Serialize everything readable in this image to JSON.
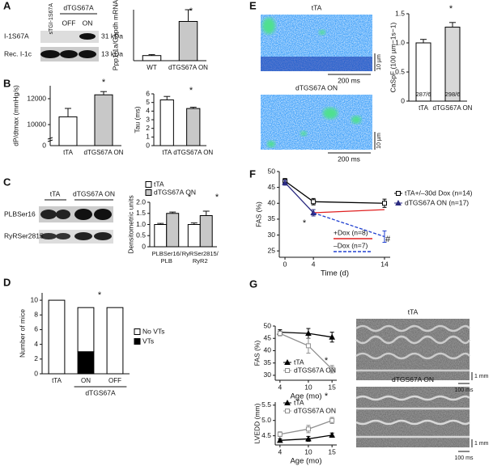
{
  "figure": {
    "panels": [
      "A",
      "B",
      "C",
      "D",
      "E",
      "F",
      "G"
    ],
    "blot_a": {
      "lanes": [
        "sTGI-1S67A",
        "dTGS67A",
        "OFF",
        "ON"
      ],
      "bands": [
        "I-1S67A",
        "Rec. I-1c"
      ],
      "sizes": [
        "31 kDa",
        "13 kDa"
      ]
    },
    "blot_c": {
      "headers": [
        "tTA",
        "dTGS67A ON"
      ],
      "bands": [
        "PLBSer16",
        "RyRSer2815"
      ]
    },
    "images_e": {
      "titles": [
        "tTA",
        "dTGS67A ON"
      ],
      "scale_y": "10 µm",
      "scale_x": "200 ms"
    },
    "images_g": {
      "titles": [
        "tTA",
        "dTGS67A ON"
      ],
      "scale_y": "1 mm",
      "scale_x": "100 ms"
    }
  },
  "chart_data": [
    {
      "type": "bar",
      "ylabel": "Ppp1r1a/Gapdh mRNA",
      "categories": [
        "WT",
        "dTGS67A ON"
      ],
      "values": [
        1,
        7.7
      ],
      "errors": [
        0.2,
        2.3
      ],
      "colors": [
        "#ffffff",
        "#c8c8c8"
      ],
      "ylim": [
        0,
        10
      ],
      "annotations": [
        "*"
      ]
    },
    {
      "type": "bar",
      "ylabel": "dP/dtmax (mmHg/s)",
      "categories": [
        "tTA",
        "dTGS67A ON"
      ],
      "values": [
        10600,
        12300
      ],
      "errors": [
        650,
        250
      ],
      "colors": [
        "#ffffff",
        "#c8c8c8"
      ],
      "ylim": [
        9000,
        13000
      ],
      "yticks": [
        10000,
        12000
      ],
      "axis_break": 0,
      "annotations": [
        "*"
      ]
    },
    {
      "type": "bar",
      "ylabel": "Tau (ms)",
      "categories": [
        "tTA",
        "dTGS67A ON"
      ],
      "values": [
        5.3,
        4.3
      ],
      "errors": [
        0.4,
        0.15
      ],
      "colors": [
        "#ffffff",
        "#c8c8c8"
      ],
      "ylim": [
        0,
        6
      ],
      "yticks": [
        0,
        1,
        2,
        3,
        4,
        5,
        6
      ],
      "annotations": [
        "*"
      ]
    },
    {
      "type": "bar",
      "ylabel": "Densitometric units",
      "categories": [
        [
          "PLBSer16/",
          "PLB"
        ],
        [
          "RyRSer2815/",
          "RyR2"
        ]
      ],
      "ylim": [
        0,
        2
      ],
      "yticks": [
        0,
        0.5,
        {
          "value": 1,
          "label": "1.0"
        },
        1.5,
        {
          "value": 2,
          "label": "2.0"
        }
      ],
      "series": [
        {
          "name": "tTA",
          "color": "#ffffff",
          "values": [
            1.0,
            1.0
          ],
          "errors": [
            0.05,
            0.07
          ]
        },
        {
          "name": "dTGS67A ON",
          "color": "#c8c8c8",
          "values": [
            1.5,
            1.4
          ],
          "errors": [
            0.06,
            0.2
          ]
        }
      ],
      "annotations": [
        "*",
        "*"
      ]
    },
    {
      "type": "bar",
      "ylabel": "Number of mice",
      "categories": [
        "tTA",
        "ON",
        "OFF"
      ],
      "group_label": "dTGS67A",
      "stacked": true,
      "ylim": [
        0,
        11
      ],
      "yticks": [
        0,
        2,
        4,
        6,
        8,
        10
      ],
      "series": [
        {
          "name": "VTs",
          "color": "#000000",
          "values": [
            0,
            3,
            0
          ]
        },
        {
          "name": "No VTs",
          "color": "#ffffff",
          "values": [
            10,
            6,
            9
          ]
        }
      ],
      "annotations": [
        "*"
      ]
    },
    {
      "type": "bar",
      "ylabel": "CaSpF (100 µm−1s−1)",
      "categories": [
        "tTA",
        "dTGS67A ON"
      ],
      "values": [
        1.0,
        1.27
      ],
      "errors": [
        0.06,
        0.08
      ],
      "colors": [
        "#ffffff",
        "#d8d8d8"
      ],
      "ylim": [
        0,
        1.5
      ],
      "yticks": [
        0,
        0.5,
        {
          "value": 1,
          "label": "1.0"
        },
        1.5
      ],
      "bar_notes": [
        "287/6",
        "298/6"
      ],
      "annotations": [
        "*"
      ]
    },
    {
      "type": "line",
      "ylabel": "FAS (%)",
      "xlabel": "Time (d)",
      "x": [
        0,
        4,
        14
      ],
      "xlim": [
        -0.8,
        14.8
      ],
      "xticks": [
        0,
        4,
        14
      ],
      "ylim": [
        23,
        50
      ],
      "yticks": [
        25,
        30,
        35,
        40,
        45,
        50
      ],
      "series": [
        {
          "name": "tTA+/–30d Dox (n=14)",
          "color": "#000000",
          "marker": "square",
          "values": [
            47,
            40.5,
            40
          ],
          "errors": [
            0.8,
            1,
            1.3
          ]
        },
        {
          "name": "dTGS67A ON (n=17)",
          "color": "#2a2a80",
          "marker": "triangle",
          "values": [
            46.5,
            37,
            null
          ],
          "errors": [
            0.8,
            1,
            null
          ]
        },
        {
          "name": "+Dox (n=8)",
          "color": "#e02020",
          "values": [
            null,
            37,
            38
          ]
        },
        {
          "name": "–Dox (n=7)",
          "color": "#2040d0",
          "dash": true,
          "values": [
            null,
            37,
            29.5
          ],
          "errors": [
            null,
            null,
            1.8
          ]
        }
      ],
      "annotations": [
        "*",
        "#"
      ]
    },
    {
      "type": "line",
      "ylabel": "FAS (%)",
      "xlabel": "Age (mo)",
      "x": [
        4,
        10,
        15
      ],
      "xlim": [
        3,
        16
      ],
      "xticks": [
        4,
        10,
        15
      ],
      "ylim": [
        28,
        50
      ],
      "yticks": [
        30,
        35,
        40,
        45,
        50
      ],
      "series": [
        {
          "name": "tTA",
          "color": "#000000",
          "marker": "triangle",
          "values": [
            47.5,
            47,
            45.5
          ],
          "errors": [
            1,
            2,
            2
          ]
        },
        {
          "name": "dTGS67A ON",
          "color": "#909090",
          "marker": "square",
          "values": [
            47,
            42,
            32.5
          ],
          "errors": [
            1,
            3,
            1.5
          ]
        }
      ],
      "annotations": [
        "*"
      ]
    },
    {
      "type": "line",
      "ylabel": "LVEDD (mm)",
      "xlabel": "Age (mo)",
      "x": [
        4,
        10,
        15
      ],
      "xlim": [
        3,
        16
      ],
      "xticks": [
        4,
        10,
        15
      ],
      "ylim": [
        4.2,
        5.6
      ],
      "yticks": [
        4.5,
        {
          "value": 5,
          "label": "5.0"
        },
        5.5
      ],
      "series": [
        {
          "name": "tTA",
          "color": "#000000",
          "marker": "triangle",
          "values": [
            4.35,
            4.4,
            4.52
          ],
          "errors": [
            0.05,
            0.08,
            0.07
          ]
        },
        {
          "name": "dTGS67A ON",
          "color": "#909090",
          "marker": "square",
          "values": [
            4.55,
            4.72,
            5.0
          ],
          "errors": [
            0.08,
            0.12,
            0.1
          ]
        }
      ],
      "annotations": [
        "*"
      ]
    }
  ]
}
